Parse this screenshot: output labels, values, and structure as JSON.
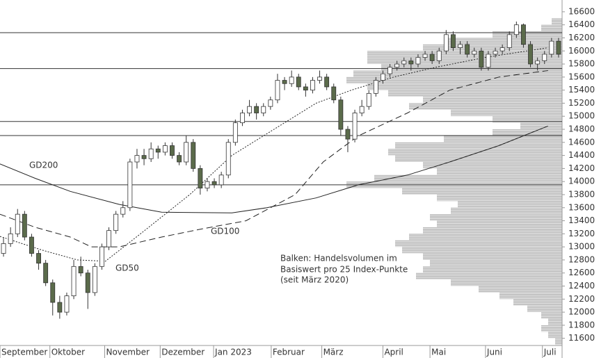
{
  "chart_data": {
    "type": "candlestick",
    "ylim": [
      11490,
      16780
    ],
    "yticks": [
      11600,
      11800,
      12000,
      12200,
      12400,
      12600,
      12800,
      13000,
      13200,
      13400,
      13600,
      13800,
      14000,
      14200,
      14400,
      14600,
      14800,
      15000,
      15200,
      15400,
      15600,
      15800,
      16000,
      16200,
      16400,
      16600
    ],
    "xlim": [
      0,
      80
    ],
    "xticks": [
      {
        "value": 0,
        "label": "September"
      },
      {
        "value": 7.1,
        "label": "Oktober"
      },
      {
        "value": 14.9,
        "label": "November"
      },
      {
        "value": 22.8,
        "label": "Dezember"
      },
      {
        "value": 30.4,
        "label": "Jan 2023"
      },
      {
        "value": 38.6,
        "label": "Februar"
      },
      {
        "value": 45.8,
        "label": "März"
      },
      {
        "value": 54.5,
        "label": "April"
      },
      {
        "value": 61.2,
        "label": "Mai"
      },
      {
        "value": 69.1,
        "label": "Juni"
      },
      {
        "value": 77.2,
        "label": "Juli"
      }
    ],
    "up_color": "#ffffff",
    "down_color": "#5b6b4b",
    "ohlc": [
      [
        12900,
        13150,
        12850,
        13050
      ],
      [
        13050,
        13300,
        13000,
        13200
      ],
      [
        13200,
        13580,
        13150,
        13500
      ],
      [
        13500,
        13550,
        13100,
        13150
      ],
      [
        13150,
        13200,
        12850,
        12900
      ],
      [
        12900,
        12950,
        12650,
        12750
      ],
      [
        12750,
        12800,
        12400,
        12450
      ],
      [
        12450,
        12500,
        11950,
        12150
      ],
      [
        12150,
        12250,
        11900,
        12000
      ],
      [
        12000,
        12300,
        11950,
        12250
      ],
      [
        12250,
        12800,
        12200,
        12700
      ],
      [
        12700,
        12850,
        12550,
        12600
      ],
      [
        12600,
        12650,
        12050,
        12300
      ],
      [
        12300,
        12750,
        12250,
        12700
      ],
      [
        12700,
        13050,
        12650,
        13000
      ],
      [
        13000,
        13300,
        12950,
        13250
      ],
      [
        13250,
        13550,
        13200,
        13500
      ],
      [
        13500,
        13700,
        13450,
        13600
      ],
      [
        13600,
        14350,
        13550,
        14300
      ],
      [
        14300,
        14500,
        14200,
        14400
      ],
      [
        14400,
        14500,
        14250,
        14350
      ],
      [
        14350,
        14600,
        14300,
        14500
      ],
      [
        14500,
        14550,
        14350,
        14450
      ],
      [
        14450,
        14600,
        14400,
        14550
      ],
      [
        14550,
        14600,
        14350,
        14400
      ],
      [
        14400,
        14450,
        14250,
        14300
      ],
      [
        14300,
        14700,
        14250,
        14600
      ],
      [
        14600,
        14650,
        14150,
        14200
      ],
      [
        14200,
        14250,
        13800,
        13900
      ],
      [
        13900,
        14050,
        13850,
        14000
      ],
      [
        14000,
        14050,
        13900,
        13950
      ],
      [
        13950,
        14150,
        13900,
        14100
      ],
      [
        14100,
        14650,
        14050,
        14600
      ],
      [
        14600,
        14950,
        14550,
        14900
      ],
      [
        14900,
        15100,
        14850,
        15050
      ],
      [
        15050,
        15250,
        15000,
        15150
      ],
      [
        15150,
        15200,
        14950,
        15050
      ],
      [
        15050,
        15200,
        15000,
        15150
      ],
      [
        15150,
        15300,
        15100,
        15250
      ],
      [
        15250,
        15650,
        15200,
        15550
      ],
      [
        15550,
        15600,
        15400,
        15500
      ],
      [
        15500,
        15700,
        15450,
        15600
      ],
      [
        15600,
        15650,
        15400,
        15450
      ],
      [
        15450,
        15500,
        15300,
        15400
      ],
      [
        15400,
        15600,
        15350,
        15550
      ],
      [
        15550,
        15700,
        15500,
        15600
      ],
      [
        15600,
        15650,
        15400,
        15450
      ],
      [
        15450,
        15500,
        15200,
        15250
      ],
      [
        15250,
        15300,
        14700,
        14800
      ],
      [
        14800,
        14850,
        14450,
        14650
      ],
      [
        14650,
        15100,
        14600,
        15050
      ],
      [
        15050,
        15250,
        15000,
        15150
      ],
      [
        15150,
        15400,
        15100,
        15350
      ],
      [
        15350,
        15600,
        15300,
        15550
      ],
      [
        15550,
        15700,
        15500,
        15650
      ],
      [
        15650,
        15800,
        15600,
        15750
      ],
      [
        15750,
        15850,
        15700,
        15800
      ],
      [
        15800,
        15900,
        15750,
        15850
      ],
      [
        15850,
        15900,
        15700,
        15800
      ],
      [
        15800,
        15950,
        15750,
        15900
      ],
      [
        15900,
        16000,
        15850,
        15950
      ],
      [
        15950,
        16000,
        15800,
        15850
      ],
      [
        15850,
        16050,
        15800,
        16000
      ],
      [
        16000,
        16320,
        15950,
        16250
      ],
      [
        16250,
        16300,
        16000,
        16050
      ],
      [
        16050,
        16150,
        15950,
        16100
      ],
      [
        16100,
        16150,
        15900,
        15950
      ],
      [
        15950,
        16050,
        15900,
        16000
      ],
      [
        16000,
        16050,
        15700,
        15750
      ],
      [
        15750,
        16000,
        15700,
        15950
      ],
      [
        15950,
        16050,
        15900,
        16000
      ],
      [
        16000,
        16100,
        15950,
        16050
      ],
      [
        16050,
        16300,
        16000,
        16250
      ],
      [
        16250,
        16450,
        16200,
        16400
      ],
      [
        16400,
        16420,
        16050,
        16100
      ],
      [
        16100,
        16150,
        15750,
        15800
      ],
      [
        15800,
        15900,
        15700,
        15850
      ],
      [
        15850,
        16000,
        15800,
        15950
      ],
      [
        15950,
        16200,
        15900,
        16150
      ],
      [
        16150,
        16200,
        15900,
        15950
      ]
    ],
    "series": [
      {
        "name": "GD200",
        "dash": "none",
        "x": [
          0,
          5,
          10,
          17,
          23,
          33,
          38,
          45,
          51,
          58,
          64,
          71,
          78
        ],
        "values": [
          14270,
          14050,
          13850,
          13650,
          13530,
          13520,
          13600,
          13750,
          13950,
          14100,
          14300,
          14550,
          14850
        ]
      },
      {
        "name": "GD100",
        "dash": "9 5",
        "x": [
          0,
          5,
          10,
          13,
          17,
          23,
          29,
          35,
          42,
          46,
          51,
          58,
          64,
          71,
          78
        ],
        "values": [
          13500,
          13300,
          13150,
          13000,
          13000,
          13150,
          13280,
          13400,
          13800,
          14300,
          14700,
          15050,
          15400,
          15600,
          15700
        ]
      },
      {
        "name": "GD50",
        "dash": "2 2",
        "x": [
          0,
          6,
          11,
          15,
          20,
          27,
          33,
          39,
          45,
          50,
          56,
          62,
          69,
          78
        ],
        "values": [
          13160,
          12950,
          12800,
          12780,
          13200,
          13800,
          14400,
          14800,
          15200,
          15400,
          15600,
          15750,
          15900,
          16050
        ]
      }
    ],
    "levels": [
      16280,
      15730,
      14920,
      14705,
      13950
    ],
    "volume_profile": {
      "levels": [
        16400,
        16300,
        16200,
        16100,
        16000,
        15900,
        15800,
        15700,
        15600,
        15500,
        15400,
        15300,
        15200,
        15100,
        15000,
        14900,
        14800,
        14700,
        14600,
        14500,
        14400,
        14300,
        14200,
        14100,
        14000,
        13900,
        13800,
        13700,
        13600,
        13500,
        13400,
        13300,
        13200,
        13100,
        13000,
        12900,
        12800,
        12700,
        12600,
        12500,
        12400,
        12300,
        12200,
        12100,
        12000,
        11900,
        11800,
        11700,
        11600,
        11500
      ],
      "values": [
        15,
        30,
        100,
        170,
        200,
        280,
        280,
        260,
        300,
        310,
        280,
        250,
        200,
        220,
        160,
        100,
        60,
        100,
        170,
        240,
        250,
        240,
        200,
        180,
        270,
        310,
        230,
        180,
        150,
        160,
        190,
        180,
        200,
        220,
        240,
        230,
        200,
        190,
        200,
        210,
        160,
        120,
        90,
        70,
        50,
        30,
        20,
        30,
        20,
        10
      ]
    },
    "annotations": [
      "GD200",
      "GD100",
      "GD50",
      "Balken: Handelsvolumen im",
      "Basiswert pro 25 Index-Punkte",
      "(seit März 2020)"
    ]
  }
}
